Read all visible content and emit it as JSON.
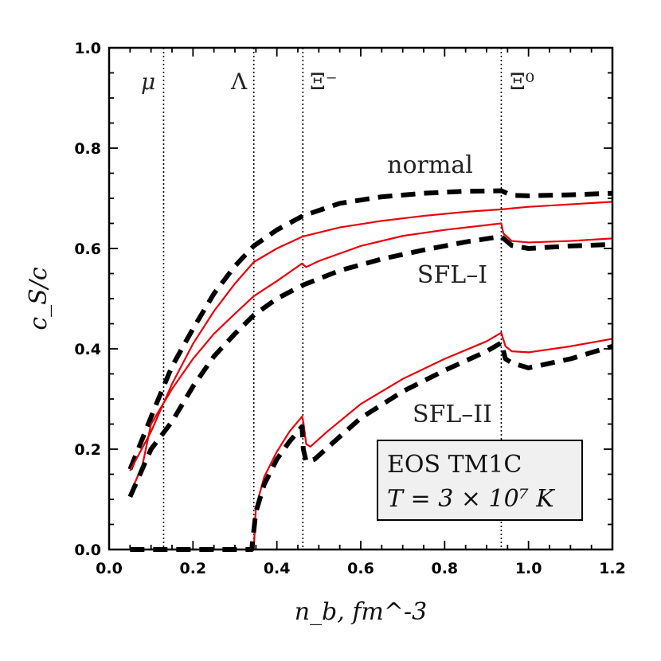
{
  "chart_data": {
    "type": "line",
    "xlim": [
      0.0,
      1.2
    ],
    "ylim": [
      0.0,
      1.0
    ],
    "x_ticks": [
      "0.0",
      "0.2",
      "0.4",
      "0.6",
      "0.8",
      "1.0",
      "1.2"
    ],
    "y_ticks": [
      "0.0",
      "0.2",
      "0.4",
      "0.6",
      "0.8",
      "1.0"
    ],
    "xlabel": "n_b, fm^-3",
    "ylabel": "c_S/c",
    "grid": false,
    "thresholds": [
      {
        "label": "μ",
        "x": 0.13
      },
      {
        "label": "Λ",
        "x": 0.345
      },
      {
        "label": "Ξ⁻",
        "x": 0.462
      },
      {
        "label": "Ξ⁰",
        "x": 0.935
      }
    ],
    "annotations": [
      {
        "text": "normal",
        "x": 0.74,
        "y": 0.765
      },
      {
        "text": "SFL–I",
        "x": 0.82,
        "y": 0.53
      },
      {
        "text": "SFL–II",
        "x": 0.82,
        "y": 0.25
      }
    ],
    "legend_box": {
      "line1": "EOS TM1C",
      "line2": "T = 3 × 10⁷ K"
    },
    "series": [
      {
        "style": "dashed-black",
        "points": [
          [
            0.05,
            0.16
          ],
          [
            0.08,
            0.222
          ],
          [
            0.11,
            0.285
          ],
          [
            0.15,
            0.365
          ],
          [
            0.2,
            0.44
          ],
          [
            0.25,
            0.51
          ],
          [
            0.3,
            0.565
          ],
          [
            0.345,
            0.605
          ],
          [
            0.4,
            0.637
          ],
          [
            0.462,
            0.665
          ],
          [
            0.55,
            0.69
          ],
          [
            0.65,
            0.703
          ],
          [
            0.75,
            0.71
          ],
          [
            0.85,
            0.714
          ],
          [
            0.935,
            0.715
          ],
          [
            0.96,
            0.706
          ],
          [
            1.0,
            0.705
          ],
          [
            1.1,
            0.707
          ],
          [
            1.2,
            0.71
          ]
        ]
      },
      {
        "style": "red",
        "points": [
          [
            0.05,
            0.157
          ],
          [
            0.1,
            0.235
          ],
          [
            0.15,
            0.33
          ],
          [
            0.2,
            0.41
          ],
          [
            0.25,
            0.475
          ],
          [
            0.3,
            0.53
          ],
          [
            0.345,
            0.573
          ],
          [
            0.4,
            0.6
          ],
          [
            0.462,
            0.624
          ],
          [
            0.55,
            0.642
          ],
          [
            0.65,
            0.655
          ],
          [
            0.75,
            0.665
          ],
          [
            0.85,
            0.673
          ],
          [
            0.935,
            0.678
          ],
          [
            1.0,
            0.683
          ],
          [
            1.1,
            0.688
          ],
          [
            1.2,
            0.693
          ]
        ]
      },
      {
        "style": "red",
        "points": [
          [
            0.05,
            0.11
          ],
          [
            0.08,
            0.17
          ],
          [
            0.1,
            0.25
          ],
          [
            0.15,
            0.32
          ],
          [
            0.2,
            0.38
          ],
          [
            0.25,
            0.43
          ],
          [
            0.3,
            0.47
          ],
          [
            0.345,
            0.505
          ],
          [
            0.4,
            0.535
          ],
          [
            0.46,
            0.57
          ],
          [
            0.462,
            0.568
          ],
          [
            0.47,
            0.563
          ],
          [
            0.5,
            0.575
          ],
          [
            0.6,
            0.605
          ],
          [
            0.7,
            0.625
          ],
          [
            0.8,
            0.637
          ],
          [
            0.935,
            0.65
          ],
          [
            0.94,
            0.63
          ],
          [
            0.96,
            0.615
          ],
          [
            1.0,
            0.612
          ],
          [
            1.1,
            0.615
          ],
          [
            1.2,
            0.62
          ]
        ]
      },
      {
        "style": "dashed-black",
        "points": [
          [
            0.05,
            0.105
          ],
          [
            0.1,
            0.2
          ],
          [
            0.15,
            0.255
          ],
          [
            0.2,
            0.325
          ],
          [
            0.25,
            0.385
          ],
          [
            0.3,
            0.43
          ],
          [
            0.345,
            0.467
          ],
          [
            0.4,
            0.5
          ],
          [
            0.462,
            0.527
          ],
          [
            0.55,
            0.556
          ],
          [
            0.65,
            0.579
          ],
          [
            0.75,
            0.597
          ],
          [
            0.85,
            0.613
          ],
          [
            0.935,
            0.624
          ],
          [
            0.96,
            0.606
          ],
          [
            1.0,
            0.6
          ],
          [
            1.1,
            0.605
          ],
          [
            1.2,
            0.608
          ]
        ]
      },
      {
        "style": "red",
        "points": [
          [
            0.05,
            0.0
          ],
          [
            0.345,
            0.0
          ],
          [
            0.35,
            0.085
          ],
          [
            0.37,
            0.145
          ],
          [
            0.4,
            0.195
          ],
          [
            0.43,
            0.235
          ],
          [
            0.46,
            0.265
          ],
          [
            0.463,
            0.255
          ],
          [
            0.47,
            0.21
          ],
          [
            0.48,
            0.205
          ],
          [
            0.52,
            0.235
          ],
          [
            0.6,
            0.29
          ],
          [
            0.7,
            0.34
          ],
          [
            0.8,
            0.38
          ],
          [
            0.9,
            0.415
          ],
          [
            0.935,
            0.432
          ],
          [
            0.945,
            0.405
          ],
          [
            0.96,
            0.395
          ],
          [
            1.0,
            0.393
          ],
          [
            1.1,
            0.405
          ],
          [
            1.2,
            0.42
          ]
        ]
      },
      {
        "style": "dashed-black",
        "points": [
          [
            0.05,
            0.0
          ],
          [
            0.34,
            0.0
          ],
          [
            0.35,
            0.075
          ],
          [
            0.37,
            0.13
          ],
          [
            0.4,
            0.18
          ],
          [
            0.43,
            0.215
          ],
          [
            0.46,
            0.245
          ],
          [
            0.463,
            0.2
          ],
          [
            0.47,
            0.175
          ],
          [
            0.49,
            0.18
          ],
          [
            0.55,
            0.225
          ],
          [
            0.6,
            0.262
          ],
          [
            0.7,
            0.315
          ],
          [
            0.8,
            0.357
          ],
          [
            0.9,
            0.395
          ],
          [
            0.935,
            0.412
          ],
          [
            0.945,
            0.38
          ],
          [
            0.96,
            0.372
          ],
          [
            1.0,
            0.362
          ],
          [
            1.1,
            0.38
          ],
          [
            1.2,
            0.405
          ]
        ]
      }
    ]
  }
}
